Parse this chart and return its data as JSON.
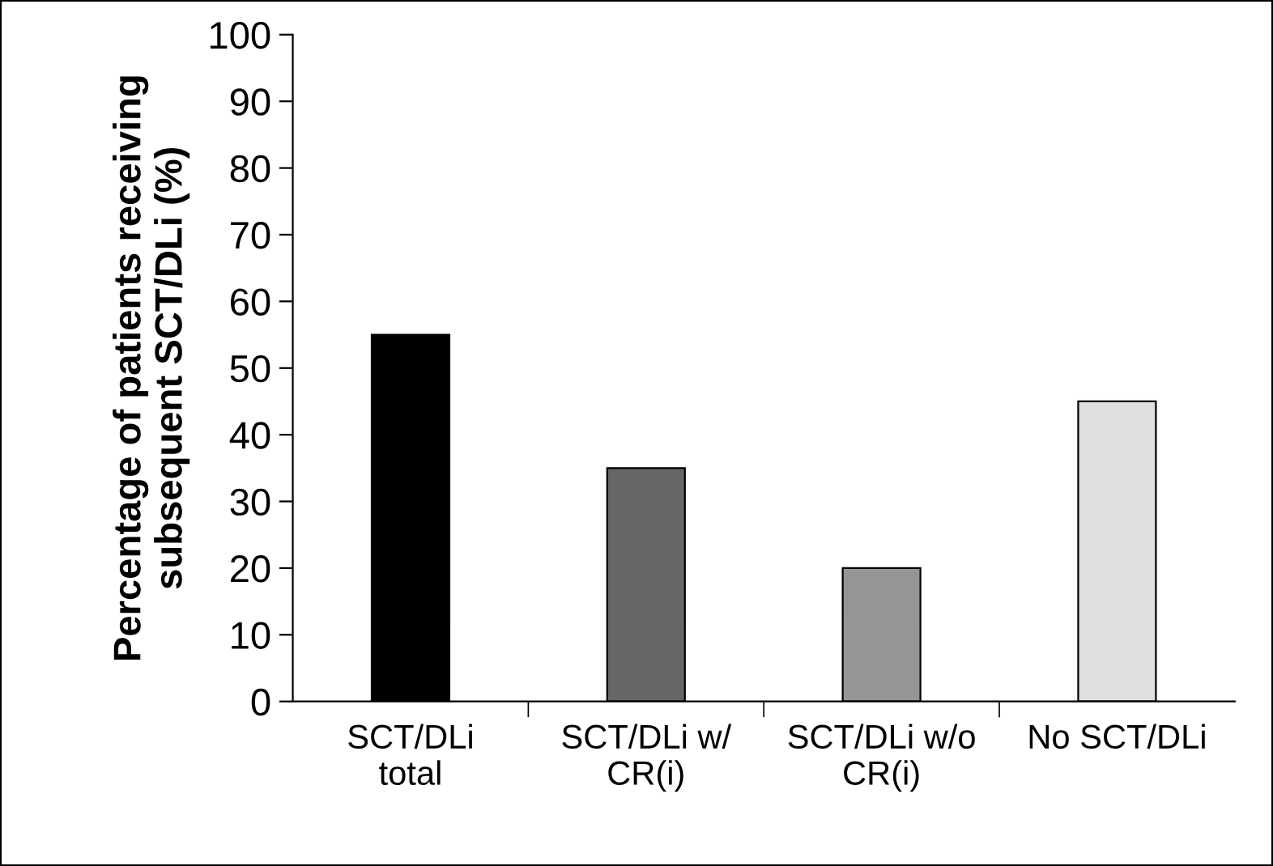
{
  "chart_data": {
    "type": "bar",
    "ylabel": "Percentage of patients receiving\nsubsequent SCT/DLi (%)",
    "categories": [
      "SCT/DLi\ntotal",
      "SCT/DLi w/\nCR(i)",
      "SCT/DLi w/o\nCR(i)",
      "No SCT/DLi"
    ],
    "values": [
      55,
      35,
      20,
      45
    ],
    "colors": [
      "#000000",
      "#666666",
      "#959595",
      "#e0e0e0"
    ],
    "ylim": [
      0,
      100
    ],
    "yticks": [
      0,
      10,
      20,
      30,
      40,
      50,
      60,
      70,
      80,
      90,
      100
    ],
    "grid": false,
    "legend": false
  }
}
